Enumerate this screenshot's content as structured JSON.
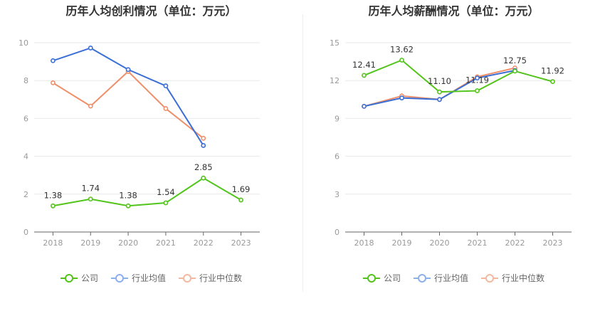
{
  "colors": {
    "company": "#52c41a",
    "industry_avg": "#3b6fd6",
    "industry_median": "#ef8f6a",
    "legend_avg": "#8ab0ee",
    "legend_median": "#f5b89e"
  },
  "legend": {
    "company": "公司",
    "industry_avg": "行业均值",
    "industry_median": "行业中位数"
  },
  "chart_data": [
    {
      "type": "line",
      "title": "历年人均创利情况（单位：万元）",
      "categories": [
        "2018",
        "2019",
        "2020",
        "2021",
        "2022",
        "2023"
      ],
      "ylim": [
        0,
        10
      ],
      "yticks": [
        "0",
        "2",
        "4",
        "6",
        "8",
        "10"
      ],
      "grid": true,
      "legend_position": "bottom",
      "series": [
        {
          "name": "公司",
          "values": [
            1.38,
            1.74,
            1.38,
            1.54,
            2.85,
            1.69
          ],
          "labels": [
            "1.38",
            "1.74",
            "1.38",
            "1.54",
            "2.85",
            "1.69"
          ]
        },
        {
          "name": "行业均值",
          "values": [
            9.05,
            9.72,
            8.58,
            7.72,
            4.57,
            null
          ]
        },
        {
          "name": "行业中位数",
          "values": [
            7.88,
            6.65,
            8.48,
            6.52,
            4.95,
            null
          ]
        }
      ]
    },
    {
      "type": "line",
      "title": "历年人均薪酬情况（单位：万元）",
      "categories": [
        "2018",
        "2019",
        "2020",
        "2021",
        "2022",
        "2023"
      ],
      "ylim": [
        0,
        15
      ],
      "yticks": [
        "0",
        "3",
        "6",
        "9",
        "12",
        "15"
      ],
      "grid": true,
      "legend_position": "bottom",
      "series": [
        {
          "name": "公司",
          "values": [
            12.41,
            13.62,
            11.1,
            11.19,
            12.75,
            11.92
          ],
          "labels": [
            "12.41",
            "13.62",
            "11.10",
            "11.19",
            "12.75",
            "11.92"
          ]
        },
        {
          "name": "行业均值",
          "values": [
            9.96,
            10.62,
            10.5,
            12.2,
            12.8,
            null
          ]
        },
        {
          "name": "行业中位数",
          "values": [
            9.96,
            10.78,
            10.5,
            12.3,
            13.0,
            null
          ]
        }
      ]
    }
  ]
}
